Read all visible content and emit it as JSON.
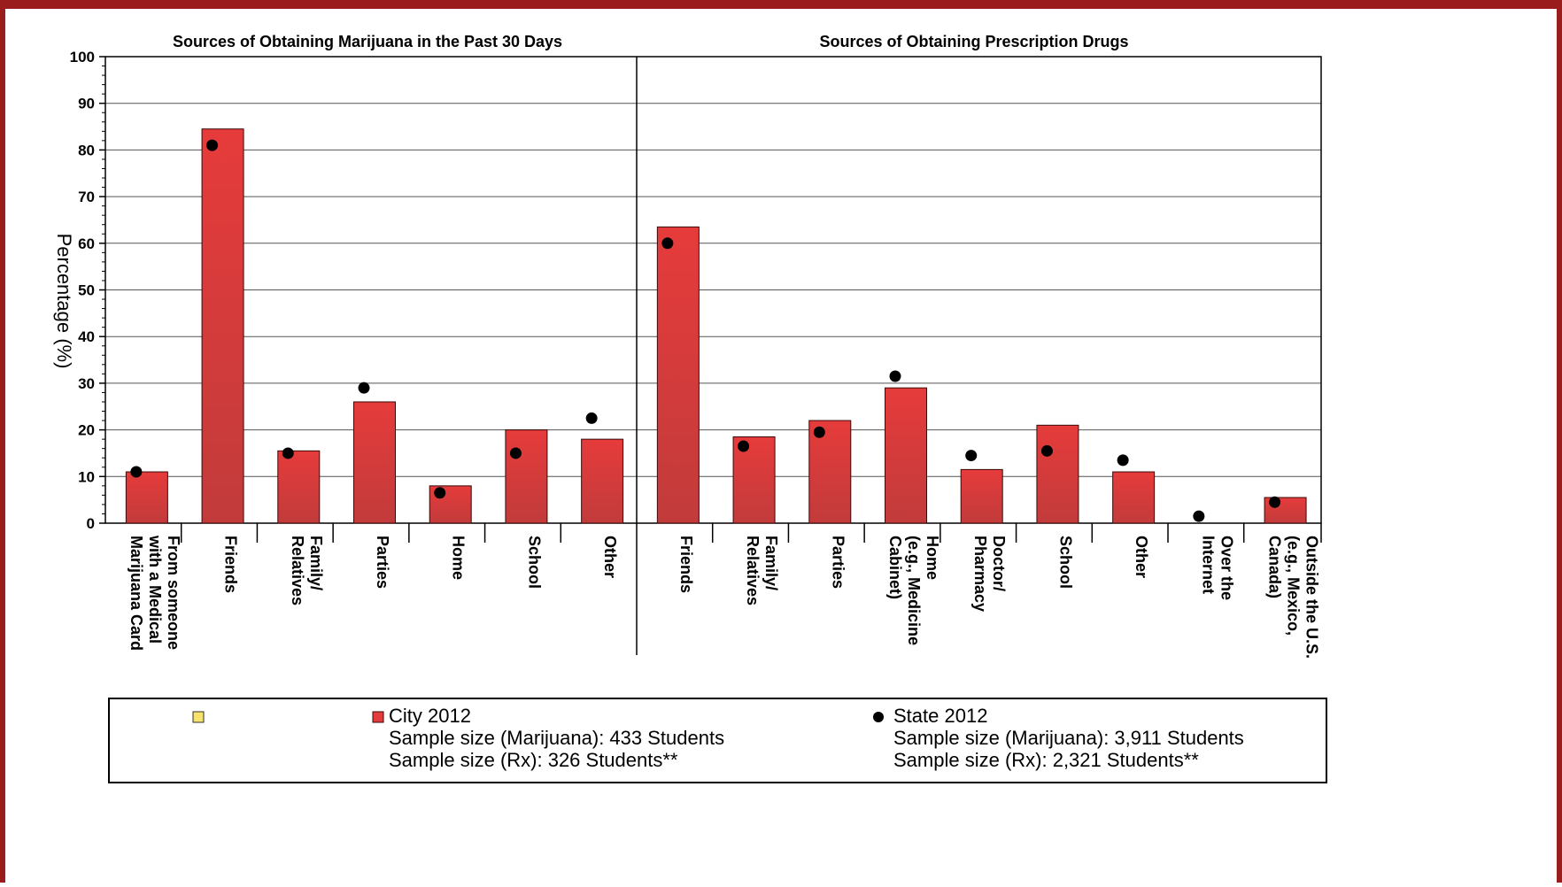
{
  "chart_data": {
    "type": "bar",
    "y_axis": {
      "label": "Percentage (%)",
      "min": 0,
      "max": 100,
      "ticks": [
        0,
        10,
        20,
        30,
        40,
        50,
        60,
        70,
        80,
        90,
        100
      ]
    },
    "panels": [
      {
        "title": "Sources of Obtaining Marijuana in the Past 30 Days",
        "categories": [
          [
            "From someone",
            "with a Medical",
            "Marijuana Card"
          ],
          [
            "Friends"
          ],
          [
            "Family/",
            "Relatives"
          ],
          [
            "Parties"
          ],
          [
            "Home"
          ],
          [
            "School"
          ],
          [
            "Other"
          ]
        ],
        "series": [
          {
            "name": "City 2012",
            "kind": "bar",
            "values": [
              11,
              84.5,
              15.5,
              26,
              8,
              20,
              18
            ]
          },
          {
            "name": "State 2012",
            "kind": "dot",
            "values": [
              11,
              81,
              15,
              29,
              6.5,
              15,
              22.5
            ]
          }
        ]
      },
      {
        "title": "Sources of Obtaining Prescription Drugs",
        "categories": [
          [
            "Friends"
          ],
          [
            "Family/",
            "Relatives"
          ],
          [
            "Parties"
          ],
          [
            "Home",
            "(e.g., Medicine",
            "Cabinet)"
          ],
          [
            "Doctor/",
            "Pharmacy"
          ],
          [
            "School"
          ],
          [
            "Other"
          ],
          [
            "Over the",
            "Internet"
          ],
          [
            "Outside the U.S.",
            "(e.g., Mexico,",
            "Canada)"
          ]
        ],
        "series": [
          {
            "name": "City 2012",
            "kind": "bar",
            "values": [
              63.5,
              18.5,
              22,
              29,
              11.5,
              21,
              11,
              0,
              5.5
            ]
          },
          {
            "name": "State 2012",
            "kind": "dot",
            "values": [
              60,
              16.5,
              19.5,
              31.5,
              14.5,
              15.5,
              13.5,
              1.5,
              4.5
            ]
          }
        ]
      }
    ],
    "legend": {
      "placement": "bottom",
      "entries": [
        {
          "name": "",
          "swatch": "yellow-square"
        },
        {
          "name": "City 2012",
          "swatch": "red-square",
          "lines": [
            "Sample size (Marijuana): 433 Students",
            "Sample size (Rx): 326 Students**"
          ]
        },
        {
          "name": "State 2012",
          "swatch": "black-dot",
          "lines": [
            "Sample size (Marijuana): 3,911 Students",
            "Sample size (Rx): 2,321 Students**"
          ]
        }
      ]
    },
    "colors": {
      "bar_top": "#e63b3b",
      "bar_bottom": "#c23b3b",
      "bar_border": "#3a0a0a",
      "dot": "#000000",
      "frame": "#9b1c1c",
      "legend_yellow": "#f7e36b"
    },
    "grid": true
  }
}
